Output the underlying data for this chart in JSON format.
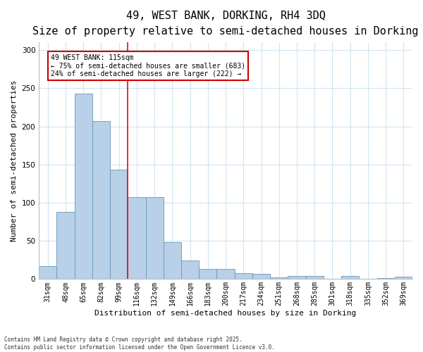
{
  "title": "49, WEST BANK, DORKING, RH4 3DQ",
  "subtitle": "Size of property relative to semi-detached houses in Dorking",
  "xlabel": "Distribution of semi-detached houses by size in Dorking",
  "ylabel": "Number of semi-detached properties",
  "categories": [
    "31sqm",
    "48sqm",
    "65sqm",
    "82sqm",
    "99sqm",
    "116sqm",
    "132sqm",
    "149sqm",
    "166sqm",
    "183sqm",
    "200sqm",
    "217sqm",
    "234sqm",
    "251sqm",
    "268sqm",
    "285sqm",
    "301sqm",
    "318sqm",
    "335sqm",
    "352sqm",
    "369sqm"
  ],
  "values": [
    17,
    88,
    243,
    207,
    143,
    107,
    107,
    48,
    24,
    13,
    13,
    8,
    7,
    2,
    4,
    4,
    0,
    4,
    0,
    1,
    3
  ],
  "bar_color": "#b8d0e8",
  "bar_edge_color": "#6699bb",
  "grid_color": "#d0e4f0",
  "annotation_text": "49 WEST BANK: 115sqm\n← 75% of semi-detached houses are smaller (683)\n24% of semi-detached houses are larger (222) →",
  "annotation_box_color": "#ffffff",
  "annotation_box_edge_color": "#cc0000",
  "ylim": [
    0,
    310
  ],
  "yticks": [
    0,
    50,
    100,
    150,
    200,
    250,
    300
  ],
  "footer": "Contains HM Land Registry data © Crown copyright and database right 2025.\nContains public sector information licensed under the Open Government Licence v3.0.",
  "title_fontsize": 11,
  "subtitle_fontsize": 9.5,
  "tick_fontsize": 7,
  "ylabel_fontsize": 8,
  "xlabel_fontsize": 8,
  "annotation_fontsize": 7,
  "footer_fontsize": 5.5
}
